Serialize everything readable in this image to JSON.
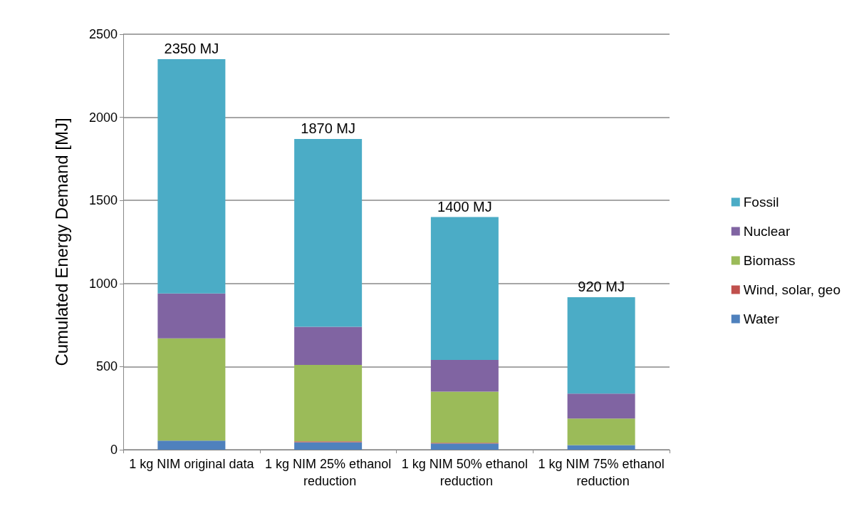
{
  "chart_data": {
    "type": "bar",
    "stacked": true,
    "ylabel": "Cumulated Energy Demand [MJ]",
    "categories": [
      "1 kg NIM original data",
      "1 kg NIM 25% ethanol reduction",
      "1 kg NIM 50% ethanol reduction",
      "1 kg NIM 75% ethanol reduction"
    ],
    "series": [
      {
        "name": "Water",
        "color": "#4f81bd",
        "values": [
          55,
          45,
          38,
          28
        ]
      },
      {
        "name": "Wind, solar, geo",
        "color": "#c0504d",
        "values": [
          0,
          5,
          4,
          null
        ]
      },
      {
        "name": "Biomass",
        "color": "#9bbb59",
        "values": [
          615,
          460,
          308,
          160
        ]
      },
      {
        "name": "Nuclear",
        "color": "#8064a2",
        "values": [
          270,
          230,
          190,
          150
        ]
      },
      {
        "name": "Fossil",
        "color": "#4bacc6",
        "values": [
          1410,
          1130,
          860,
          580
        ]
      }
    ],
    "totals": [
      "2350 MJ",
      "1870 MJ",
      "1400 MJ",
      "920 MJ"
    ],
    "ylim": [
      0,
      2500
    ],
    "yticks": [
      0,
      500,
      1000,
      1500,
      2000,
      2500
    ],
    "grid": "y",
    "legend": "right"
  }
}
